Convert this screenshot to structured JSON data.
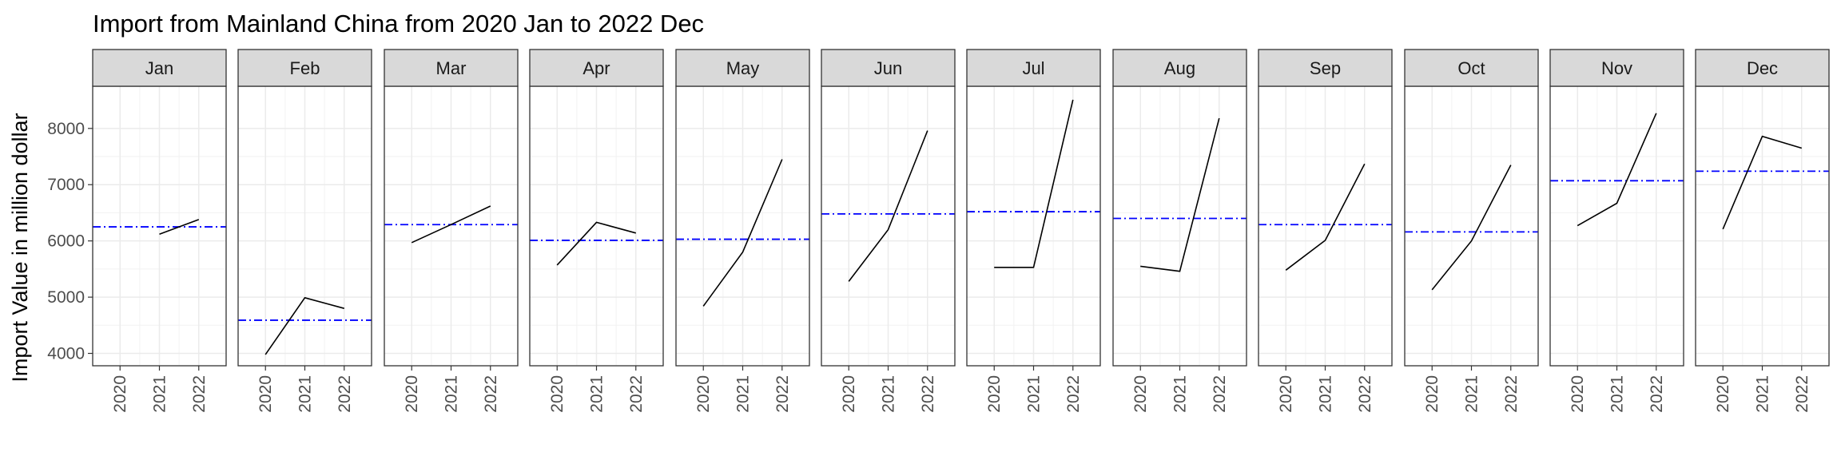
{
  "chart_data": {
    "type": "line",
    "facet": "month",
    "title": "Import from Mainland China from 2020 Jan to 2022 Dec",
    "xlabel": "",
    "ylabel": "Import Value in million dollar",
    "x": [
      "2020",
      "2021",
      "2022"
    ],
    "ylim": [
      3780,
      8750
    ],
    "yticks": [
      4000,
      5000,
      6000,
      7000,
      8000
    ],
    "grid": true,
    "colors": {
      "line": "#000000",
      "mean_line": "#0000ff",
      "strip": "#d9d9d9",
      "grid": "#ebebeb"
    },
    "panels": [
      {
        "month": "Jan",
        "values": [
          null,
          6120,
          6380
        ],
        "mean": 6250
      },
      {
        "month": "Feb",
        "values": [
          3980,
          4990,
          4800
        ],
        "mean": 4590
      },
      {
        "month": "Mar",
        "values": [
          5970,
          6290,
          6620
        ],
        "mean": 6290
      },
      {
        "month": "Apr",
        "values": [
          5570,
          6330,
          6140
        ],
        "mean": 6010
      },
      {
        "month": "May",
        "values": [
          4840,
          5800,
          7450
        ],
        "mean": 6030
      },
      {
        "month": "Jun",
        "values": [
          5280,
          6200,
          7960
        ],
        "mean": 6480
      },
      {
        "month": "Jul",
        "values": [
          5530,
          5530,
          8510
        ],
        "mean": 6520
      },
      {
        "month": "Aug",
        "values": [
          5550,
          5460,
          8180
        ],
        "mean": 6400
      },
      {
        "month": "Sep",
        "values": [
          5480,
          6010,
          7370
        ],
        "mean": 6290
      },
      {
        "month": "Oct",
        "values": [
          5130,
          6000,
          7350
        ],
        "mean": 6160
      },
      {
        "month": "Nov",
        "values": [
          6270,
          6670,
          8270
        ],
        "mean": 7070
      },
      {
        "month": "Dec",
        "values": [
          6210,
          7860,
          7650
        ],
        "mean": 7240
      }
    ]
  }
}
